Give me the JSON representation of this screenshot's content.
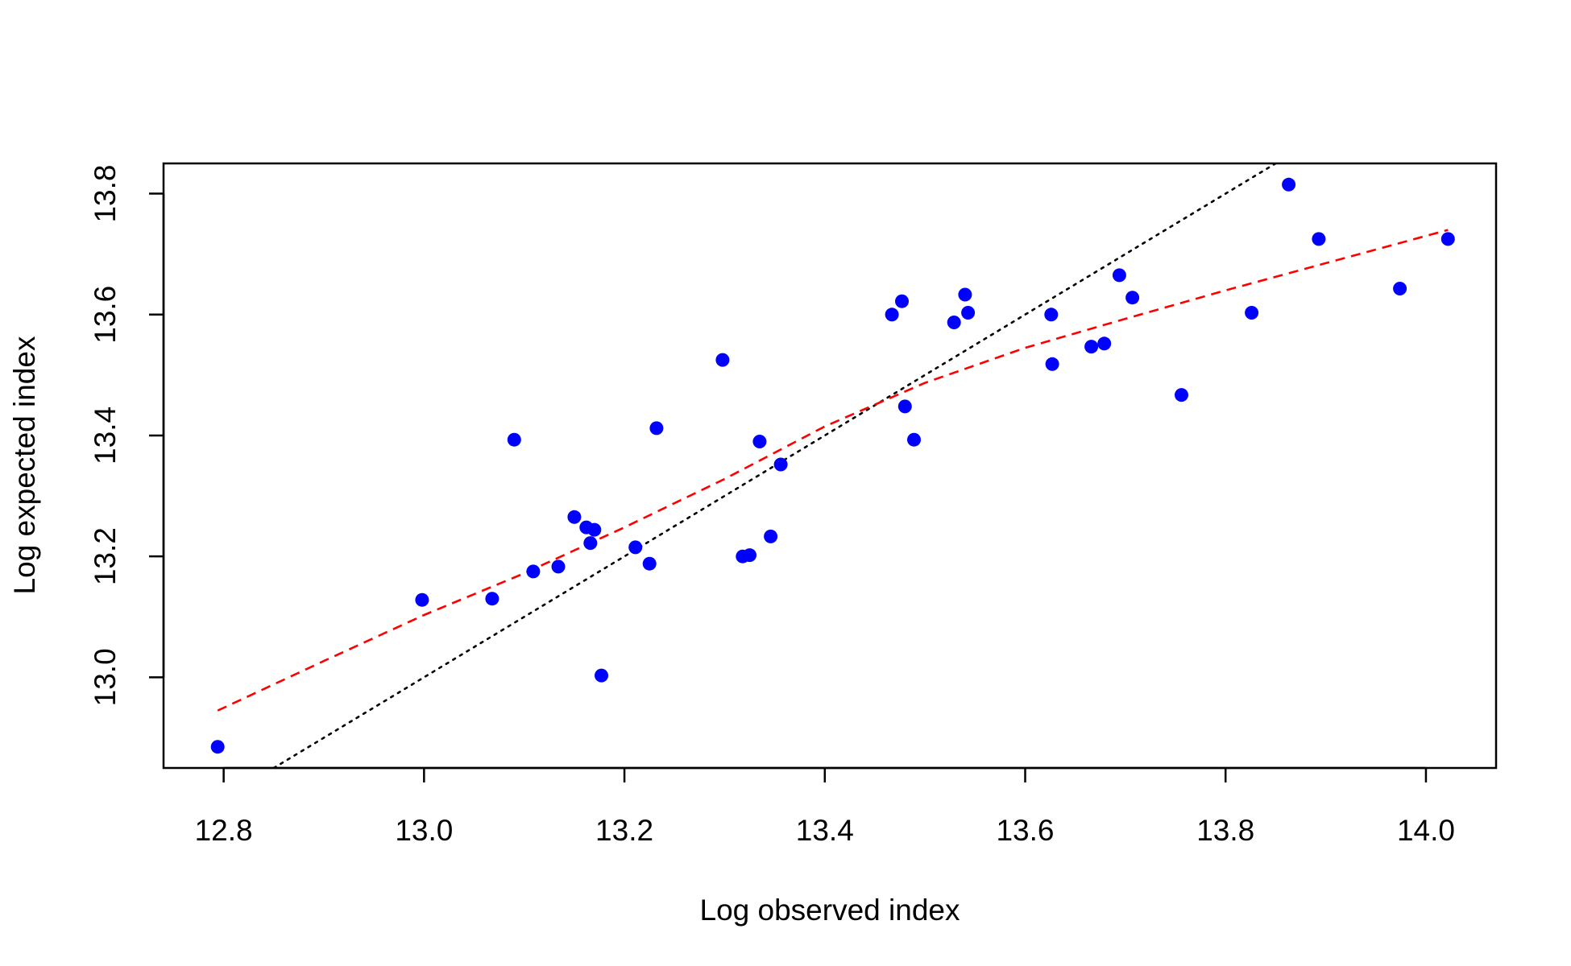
{
  "chart_data": {
    "type": "scatter",
    "title": "",
    "xlabel": "Log observed index",
    "ylabel": "Log expected index",
    "xlim": [
      12.74,
      14.07
    ],
    "ylim": [
      12.85,
      13.85
    ],
    "xticks": [
      "12.8",
      "13.0",
      "13.2",
      "13.4",
      "13.6",
      "13.8",
      "14.0"
    ],
    "yticks": [
      "13.0",
      "13.2",
      "13.4",
      "13.6",
      "13.8"
    ],
    "grid": false,
    "legend": "none",
    "points": {
      "color": "#0000ff",
      "x": [
        12.794,
        12.998,
        13.068,
        13.09,
        13.109,
        13.134,
        13.15,
        13.162,
        13.166,
        13.17,
        13.177,
        13.211,
        13.225,
        13.232,
        13.298,
        13.318,
        13.325,
        13.335,
        13.346,
        13.356,
        13.467,
        13.477,
        13.48,
        13.489,
        13.529,
        13.54,
        13.543,
        13.626,
        13.627,
        13.666,
        13.679,
        13.694,
        13.707,
        13.756,
        13.826,
        13.863,
        13.893,
        13.974,
        14.022
      ],
      "y": [
        12.885,
        13.128,
        13.13,
        13.393,
        13.175,
        13.183,
        13.265,
        13.248,
        13.222,
        13.244,
        13.003,
        13.215,
        13.188,
        13.412,
        13.525,
        13.2,
        13.202,
        13.39,
        13.233,
        13.352,
        13.6,
        13.622,
        13.448,
        13.393,
        13.587,
        13.633,
        13.603,
        13.6,
        13.518,
        13.547,
        13.552,
        13.665,
        13.628,
        13.467,
        13.603,
        13.815,
        13.725,
        13.643,
        13.725
      ]
    },
    "reference_line": {
      "color": "#000000",
      "style": "dotted",
      "x": [
        12.85,
        13.85
      ],
      "y": [
        12.85,
        13.85
      ]
    },
    "smooth_fit": {
      "color": "#ff0000",
      "style": "dashed",
      "x": [
        12.794,
        12.9,
        13.0,
        13.1,
        13.2,
        13.3,
        13.4,
        13.5,
        13.6,
        13.7,
        13.8,
        13.9,
        14.022
      ],
      "y": [
        12.945,
        13.027,
        13.103,
        13.172,
        13.248,
        13.328,
        13.415,
        13.487,
        13.545,
        13.593,
        13.64,
        13.685,
        13.74
      ]
    }
  }
}
